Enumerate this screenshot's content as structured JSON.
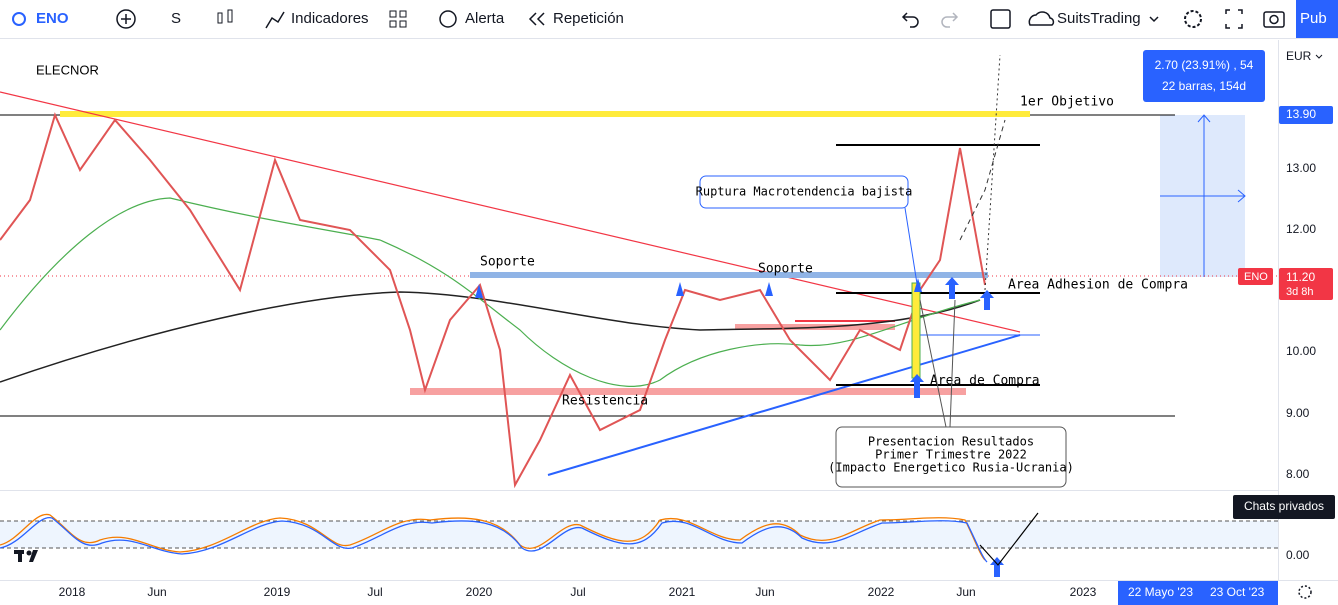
{
  "toolbar": {
    "symbol": "ENO",
    "interval": "S",
    "indicators": "Indicadores",
    "alert": "Alerta",
    "replay": "Repetición",
    "layout": "SuitsTrading",
    "publish": "Pub"
  },
  "chart": {
    "name": "ELECNOR",
    "currency": "EUR",
    "price_ticks": [
      "13.00",
      "12.00",
      "10.00",
      "9.00",
      "8.00"
    ],
    "target_price": "13.90",
    "symbol_tag": "ENO",
    "last_price": "11.20",
    "countdown": "3d 8h",
    "measure": {
      "line1": "2.70 (23.91%) , 54",
      "line2": "22 barras, 154d"
    },
    "annotations": {
      "objective": "1er Objetivo",
      "support_left": "Soporte",
      "support_right": "Soporte",
      "adhesion": "Area Adhesion de Compra",
      "buy_area": "Area de Compra",
      "resistance": "Resistencia",
      "breakout": "Ruptura Macrotendencia bajista",
      "note": [
        "Presentacion Resultados",
        "Primer Trimestre 2022",
        "(Impacto Energetico Rusia-Ucrania)"
      ]
    },
    "oscillator_tick": "0.00",
    "time_labels": [
      "2018",
      "Jun",
      "2019",
      "Jul",
      "2020",
      "Jul",
      "2021",
      "Jun",
      "2022",
      "Jun",
      "2023"
    ],
    "date_range": [
      "22 Mayo '23",
      "23 Oct '23"
    ],
    "tooltip": "Chats privados"
  }
}
